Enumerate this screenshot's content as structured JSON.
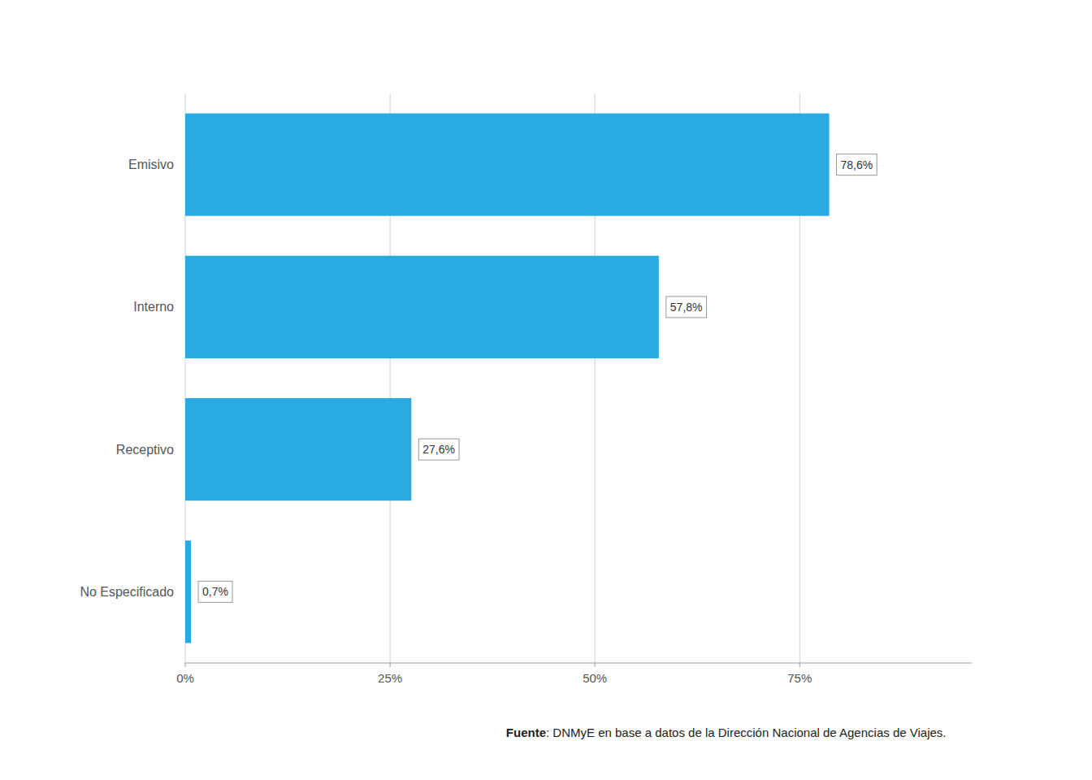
{
  "chart_data": {
    "type": "bar",
    "orientation": "horizontal",
    "categories": [
      "No Especificado",
      "Receptivo",
      "Interno",
      "Emisivo"
    ],
    "values": [
      0.7,
      27.6,
      57.8,
      78.6
    ],
    "value_labels": [
      "0,7%",
      "27,6%",
      "57,8%",
      "78,6%"
    ],
    "data_labels": true,
    "color": "#29ABE2",
    "xlim": [
      0,
      96
    ],
    "xticks": [
      {
        "value": 0,
        "label": "0%"
      },
      {
        "value": 25,
        "label": "25%"
      },
      {
        "value": 50,
        "label": "50%"
      },
      {
        "value": 75,
        "label": "75%"
      }
    ],
    "grid": true,
    "annotations": [
      "Fuente",
      ": DNMyE en base a datos de la Dirección Nacional de Agencias de Viajes."
    ]
  }
}
